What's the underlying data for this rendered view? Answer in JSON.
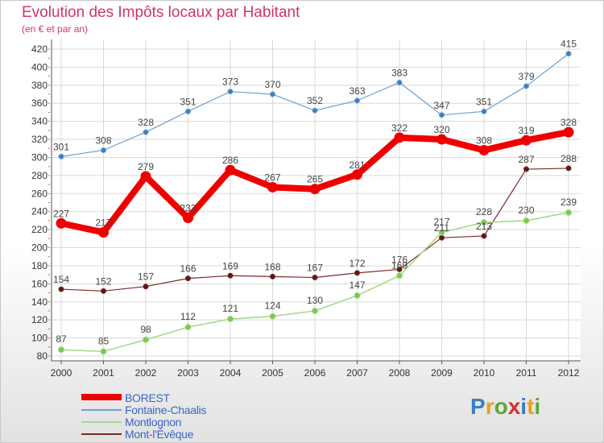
{
  "header": {
    "title": "Evolution des Impôts locaux par Habitant",
    "subtitle": "(en € et par an)"
  },
  "chart_data": {
    "type": "line",
    "title": "Evolution des Impôts locaux par Habitant",
    "subtitle": "(en € et par an)",
    "xlabel": "",
    "ylabel": "",
    "ylim": [
      80,
      420
    ],
    "yticks": [
      80,
      100,
      120,
      140,
      160,
      180,
      200,
      220,
      240,
      260,
      280,
      300,
      320,
      340,
      360,
      380,
      400,
      420
    ],
    "grid": true,
    "categories": [
      "2000",
      "2001",
      "2002",
      "2003",
      "2004",
      "2005",
      "2006",
      "2007",
      "2008",
      "2009",
      "2010",
      "2011",
      "2012"
    ],
    "series": [
      {
        "name": "Fontaine-Chaalis",
        "color": "#6d9fd0",
        "marker": "#3e7dbf",
        "values": [
          301,
          308,
          328,
          351,
          373,
          370,
          352,
          363,
          383,
          347,
          351,
          379,
          415
        ]
      },
      {
        "name": "BOREST",
        "color": "#ee0000",
        "marker": "#ee0000",
        "values": [
          227,
          217,
          279,
          233,
          286,
          267,
          265,
          281,
          322,
          320,
          308,
          319,
          328
        ]
      },
      {
        "name": "Mont-l'Évêque",
        "color": "#7a2a2a",
        "marker": "#5a1818",
        "values": [
          154,
          152,
          157,
          166,
          169,
          168,
          167,
          172,
          176,
          211,
          213,
          287,
          288
        ]
      },
      {
        "name": "Montlognon",
        "color": "#a9d88c",
        "marker": "#7ec850",
        "values": [
          87,
          85,
          98,
          112,
          121,
          124,
          130,
          147,
          169,
          217,
          228,
          230,
          239
        ]
      }
    ],
    "legend": [
      {
        "name": "BOREST",
        "color": "#ee0000"
      },
      {
        "name": "Fontaine-Chaalis",
        "color": "#6d9fd0"
      },
      {
        "name": "Montlognon",
        "color": "#a9d88c"
      },
      {
        "name": "Mont-l'Évêque",
        "color": "#7a2a2a"
      }
    ]
  },
  "logo": {
    "letters": [
      "P",
      "r",
      "o",
      "x",
      "i",
      "t",
      "i"
    ],
    "colors": [
      "#3a7ec4",
      "#e8a020",
      "#5aa83a",
      "#d83030",
      "#3a7ec4",
      "#e8a020",
      "#5aa83a"
    ]
  }
}
